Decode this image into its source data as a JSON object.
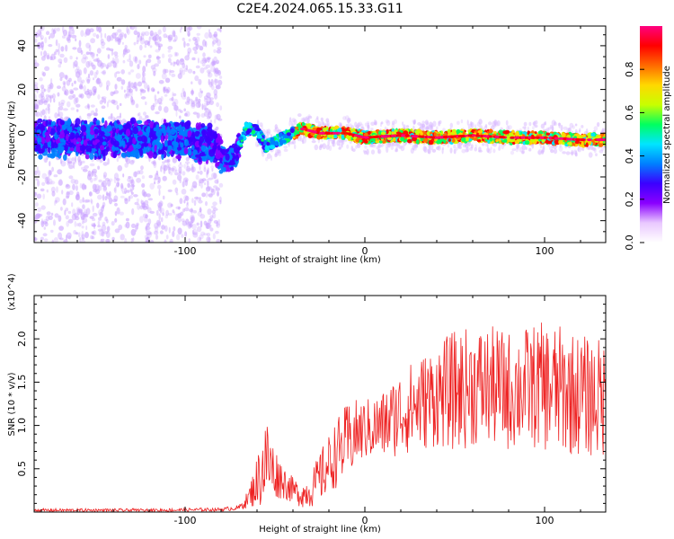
{
  "title": "C2E4.2024.065.15.33.G11",
  "chart_data": [
    {
      "type": "heatmap",
      "xlabel": "Height of straight line (km)",
      "ylabel": "Frequency (Hz)",
      "xlim": [
        -184,
        134
      ],
      "ylim": [
        -50,
        49
      ],
      "xticks": [
        -100,
        0,
        100
      ],
      "yticks": [
        -40,
        -20,
        0,
        20,
        40
      ],
      "colorbar": {
        "label": "Normalized spectral amplitude",
        "range": [
          0.0,
          1.0
        ],
        "ticks": [
          0.0,
          0.2,
          0.4,
          0.6,
          0.8
        ],
        "colormap": [
          "#ffffff",
          "#e9c8ff",
          "#8a00ff",
          "#3b00ff",
          "#0080ff",
          "#00e5ff",
          "#00ff60",
          "#c8ff00",
          "#ffd800",
          "#ff6a00",
          "#ff0000",
          "#ff0080"
        ]
      },
      "ridge": {
        "x": [
          -184,
          -150,
          -120,
          -100,
          -85,
          -78,
          -72,
          -66,
          -60,
          -55,
          -50,
          -45,
          -40,
          -35,
          -30,
          -25,
          -20,
          -15,
          -10,
          -5,
          0,
          20,
          40,
          60,
          80,
          100,
          120,
          134
        ],
        "y": [
          -2,
          -3,
          -2,
          -3,
          -5,
          -12,
          -10,
          2,
          1,
          -6,
          -4,
          -2,
          0,
          2,
          1,
          0,
          0,
          0,
          0,
          -1,
          -2,
          -1,
          -2,
          -1,
          -2,
          -2,
          -3,
          -3
        ]
      },
      "region_notes": "broad scattered energy below -80 km, narrow coherent ridge above -40 km"
    },
    {
      "type": "line",
      "xlabel": "Height of straight line (km)",
      "ylabel": "SNR (10 * v/v)",
      "y_multiplier": "(x10^4)",
      "xlim": [
        -184,
        134
      ],
      "ylim": [
        0,
        2.5
      ],
      "xticks": [
        -100,
        0,
        100
      ],
      "yticks": [
        0.5,
        1.0,
        1.5,
        2.0
      ],
      "color": "#ee2222",
      "envelope": {
        "x": [
          -184,
          -120,
          -80,
          -70,
          -65,
          -60,
          -55,
          -50,
          -45,
          -40,
          -35,
          -30,
          -25,
          -20,
          -15,
          -10,
          -5,
          0,
          10,
          20,
          30,
          40,
          50,
          60,
          70,
          80,
          90,
          100,
          110,
          120,
          134
        ],
        "mean": [
          0.02,
          0.02,
          0.03,
          0.05,
          0.15,
          0.35,
          0.6,
          0.45,
          0.35,
          0.25,
          0.2,
          0.25,
          0.4,
          0.55,
          0.7,
          0.8,
          0.9,
          0.95,
          1.0,
          1.15,
          1.25,
          1.35,
          1.4,
          1.45,
          1.45,
          1.4,
          1.45,
          1.45,
          1.4,
          1.35,
          1.3
        ],
        "amp": [
          0.02,
          0.02,
          0.02,
          0.03,
          0.1,
          0.3,
          0.55,
          0.3,
          0.2,
          0.15,
          0.15,
          0.2,
          0.3,
          0.35,
          0.4,
          0.45,
          0.4,
          0.35,
          0.4,
          0.5,
          0.55,
          0.6,
          0.7,
          0.7,
          0.7,
          0.7,
          0.7,
          0.75,
          0.75,
          0.7,
          0.7
        ]
      }
    }
  ]
}
